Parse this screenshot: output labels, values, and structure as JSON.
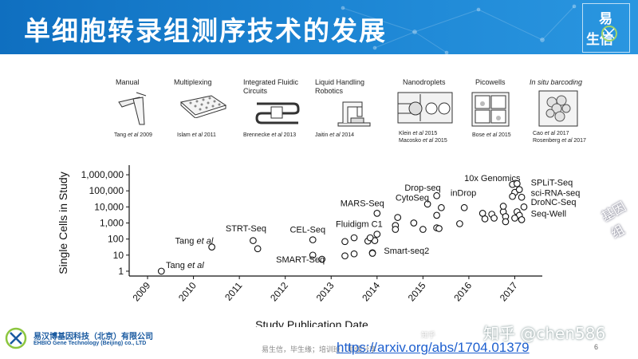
{
  "header": {
    "title": "单细胞转录组测序技术的发展",
    "logo_lines": [
      "易",
      "生信"
    ]
  },
  "technologies": [
    {
      "name": "Manual",
      "refs": [
        "Tang et al 2009"
      ]
    },
    {
      "name": "Multiplexing",
      "refs": [
        "Islam et al 2011"
      ]
    },
    {
      "name": "Integrated Fluidic Circuits",
      "refs": [
        "Brennecke et al 2013"
      ]
    },
    {
      "name": "Liquid Handling Robotics",
      "refs": [
        "Jaitin et al 2014"
      ]
    },
    {
      "name": "Nanodroplets",
      "refs": [
        "Klein et al 2015",
        "Macosko et al 2015"
      ]
    },
    {
      "name": "Picowells",
      "refs": [
        "Bose et al 2015"
      ]
    },
    {
      "name": "In situ barcoding",
      "refs": [
        "Cao et al 2017",
        "Rosenberg et al 2017"
      ]
    }
  ],
  "chart_data": {
    "type": "scatter",
    "xlabel": "Study Publication Date",
    "ylabel": "Single Cells in Study",
    "y_scale": "log",
    "xlim": [
      2008.6,
      2017.6
    ],
    "ylim": [
      0.5,
      2000000
    ],
    "x_ticks": [
      "2009",
      "2010",
      "2011",
      "2012",
      "2013",
      "2014",
      "2015",
      "2016",
      "2017"
    ],
    "y_ticks": [
      "1",
      "10",
      "100",
      "1,000",
      "10,000",
      "100,000",
      "1,000,000"
    ],
    "points": [
      [
        2009.3,
        1
      ],
      [
        2010.4,
        32
      ],
      [
        2011.3,
        80
      ],
      [
        2011.4,
        25
      ],
      [
        2012.6,
        90
      ],
      [
        2012.6,
        10
      ],
      [
        2012.8,
        5.5
      ],
      [
        2013.3,
        70
      ],
      [
        2013.3,
        9
      ],
      [
        2013.5,
        12
      ],
      [
        2013.5,
        120
      ],
      [
        2013.8,
        75
      ],
      [
        2013.9,
        14
      ],
      [
        2013.9,
        13
      ],
      [
        2013.95,
        80
      ],
      [
        2013.85,
        120
      ],
      [
        2014.0,
        200
      ],
      [
        2014.0,
        4000
      ],
      [
        2014.4,
        700
      ],
      [
        2014.45,
        2200
      ],
      [
        2014.4,
        400
      ],
      [
        2014.8,
        1000
      ],
      [
        2015.0,
        400
      ],
      [
        2015.1,
        15000
      ],
      [
        2015.3,
        50000
      ],
      [
        2015.3,
        3000
      ],
      [
        2015.3,
        500
      ],
      [
        2015.4,
        9000
      ],
      [
        2015.35,
        450
      ],
      [
        2015.8,
        900
      ],
      [
        2015.9,
        9000
      ],
      [
        2016.3,
        4000
      ],
      [
        2016.35,
        1800
      ],
      [
        2016.5,
        3500
      ],
      [
        2016.55,
        2000
      ],
      [
        2016.75,
        5000
      ],
      [
        2016.8,
        2500
      ],
      [
        2016.8,
        1200
      ],
      [
        2016.75,
        11000
      ],
      [
        2016.95,
        250000
      ],
      [
        2017.05,
        280000
      ],
      [
        2017.0,
        80000
      ],
      [
        2016.95,
        45000
      ],
      [
        2017.1,
        120000
      ],
      [
        2017.15,
        40000
      ],
      [
        2017.2,
        10000
      ],
      [
        2017.05,
        5000
      ],
      [
        2017.1,
        3000
      ],
      [
        2017.15,
        1600
      ],
      [
        2017.0,
        2000
      ]
    ],
    "annotations": [
      {
        "text": "Tang et al",
        "x": 2009.4,
        "y": 1.6
      },
      {
        "text": "Tang et al",
        "x": 2009.6,
        "y": 50
      },
      {
        "text": "STRT-Seq",
        "x": 2010.7,
        "y": 300
      },
      {
        "text": "CEL-Seq",
        "x": 2012.1,
        "y": 250
      },
      {
        "text": "SMART-Seq",
        "x": 2011.8,
        "y": 3.5
      },
      {
        "text": "Fluidigm C1",
        "x": 2013.1,
        "y": 550
      },
      {
        "text": "MARS-Seq",
        "x": 2013.2,
        "y": 11000
      },
      {
        "text": "Smart-seq2",
        "x": 2014.15,
        "y": 12
      },
      {
        "text": "CytoSeq",
        "x": 2014.4,
        "y": 25000
      },
      {
        "text": "Drop-seq",
        "x": 2014.6,
        "y": 100000
      },
      {
        "text": "inDrop",
        "x": 2015.6,
        "y": 50000
      },
      {
        "text": "10x Genomics",
        "x": 2015.9,
        "y": 400000
      },
      {
        "text": "SPLiT-Seq",
        "x": 2017.35,
        "y": 220000
      },
      {
        "text": "sci-RNA-seq",
        "x": 2017.35,
        "y": 50000
      },
      {
        "text": "DroNC-Seq",
        "x": 2017.35,
        "y": 13000
      },
      {
        "text": "Seq-Well",
        "x": 2017.35,
        "y": 2500
      }
    ],
    "grid": false,
    "legend": "none"
  },
  "footer": {
    "company_cn": "易汉博基因科技（北京）有限公司",
    "company_en": "EHBIO Gene Technology (Beijing) co., LTD",
    "note": "易生信，毕生缘；培训班，顺便分享",
    "url": "https://arxiv.org/abs/1704.01379",
    "page": "6",
    "watermark": "知乎 @chen586",
    "side_watermark": "基因组",
    "small_watermark": "知乎"
  },
  "colors": {
    "header_blue": "#1579c9",
    "url_blue": "#1d5fcf",
    "marker_stroke": "#111111"
  }
}
